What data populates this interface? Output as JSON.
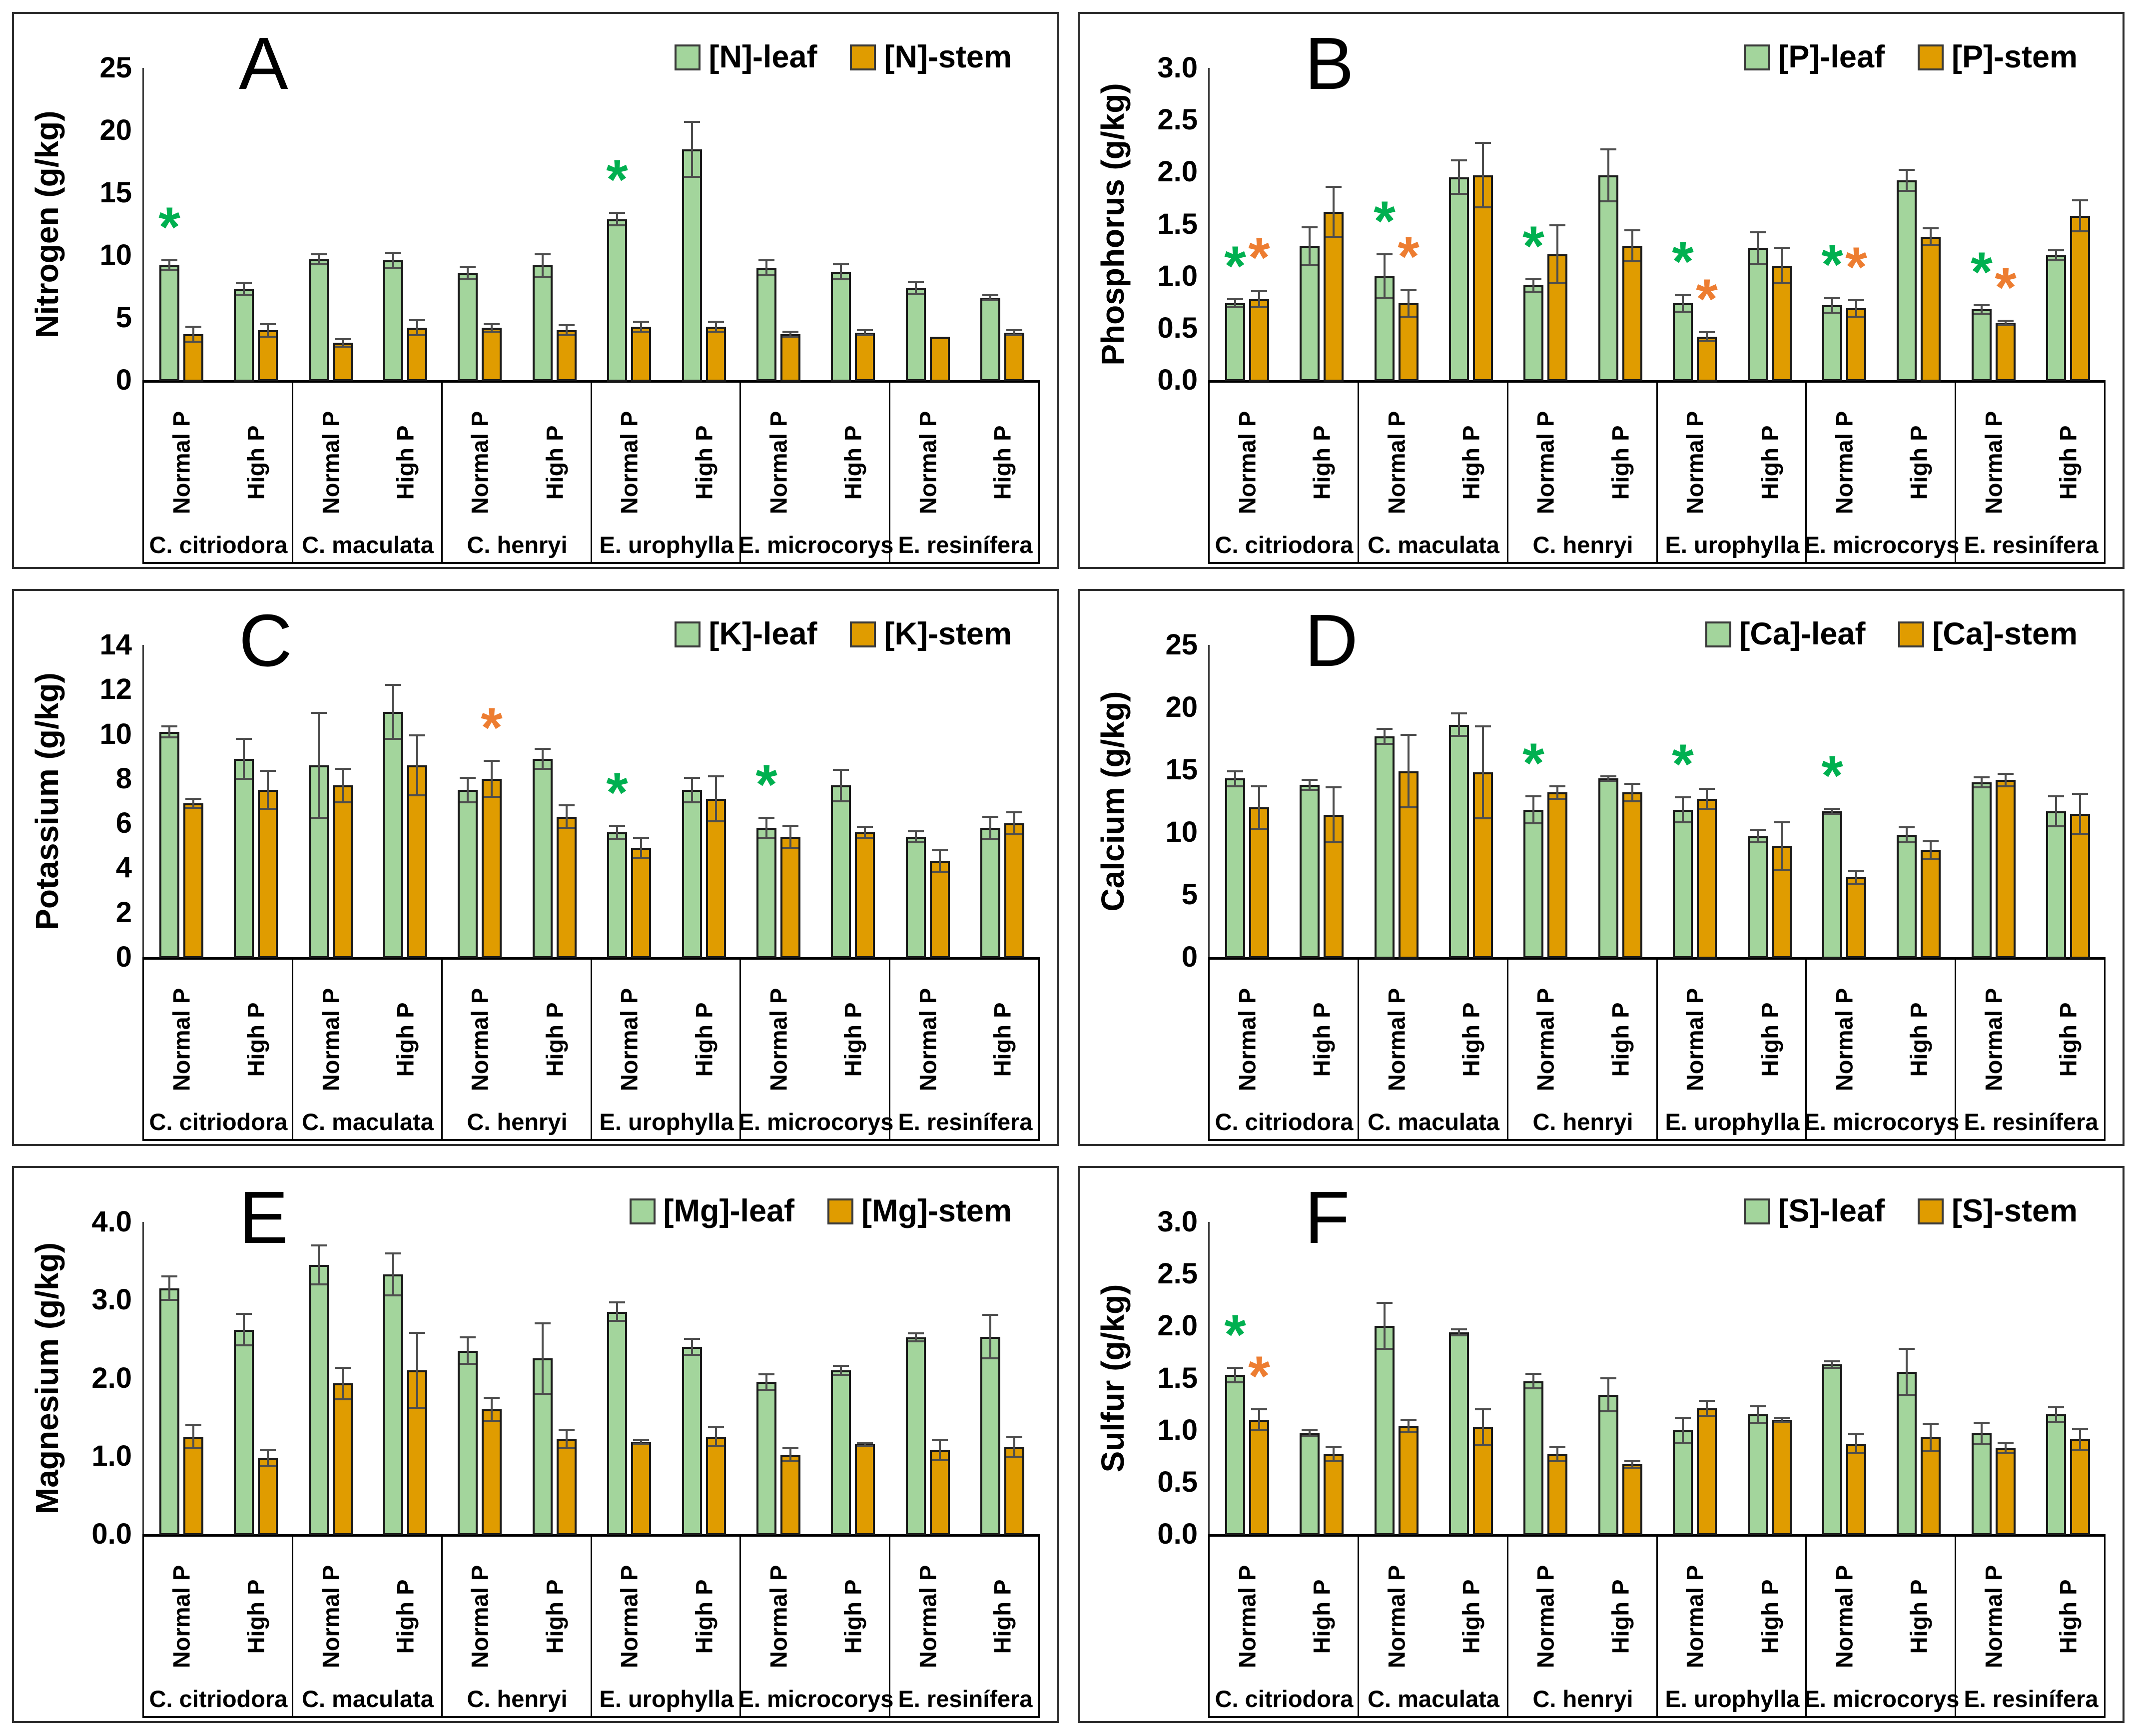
{
  "figure": {
    "background": "#FFFFFF",
    "sig_marker": "*",
    "species": [
      "C. citriodora",
      "C. maculata",
      "C. henryi",
      "E. urophylla",
      "E. microcorys",
      "E. resinífera"
    ],
    "treatments": [
      "Normal P",
      "High P"
    ],
    "colors": {
      "leaf_fill": "#A3D59C",
      "stem_fill": "#E09C00",
      "bar_border": "#1A1A1A",
      "error_bar": "#4D4D4D",
      "sig_leaf": "#00B050",
      "sig_stem": "#ED7D31",
      "panel_border": "#2E2E2E",
      "axis": "#3F3F3F"
    }
  },
  "chart_data": [
    {
      "panel_letter": "A",
      "type": "bar",
      "ylabel": "Nitrogen (g/kg)",
      "ylim": [
        0,
        25
      ],
      "yticks": [
        0,
        5,
        10,
        15,
        20,
        25
      ],
      "ytick_labels": [
        "0",
        "5",
        "10",
        "15",
        "20",
        "25"
      ],
      "categories": [
        "C. citriodora Normal P",
        "C. citriodora High P",
        "C. maculata Normal P",
        "C. maculata High P",
        "C. henryi Normal P",
        "C. henryi High P",
        "E. urophylla Normal P",
        "E. urophylla High P",
        "E. microcorys Normal P",
        "E. microcorys High P",
        "E. resinífera Normal P",
        "E. resinífera High P"
      ],
      "series": [
        {
          "name": "[N]-leaf",
          "tissue": "leaf",
          "values": [
            9.2,
            7.3,
            9.7,
            9.6,
            8.6,
            9.2,
            12.9,
            18.5,
            9.0,
            8.7,
            7.4,
            6.6
          ],
          "errors": [
            0.4,
            0.5,
            0.4,
            0.6,
            0.5,
            0.9,
            0.5,
            2.2,
            0.6,
            0.6,
            0.5,
            0.2
          ],
          "sig": [
            0,
            6
          ]
        },
        {
          "name": "[N]-stem",
          "tissue": "stem",
          "values": [
            3.7,
            4.0,
            3.0,
            4.2,
            4.2,
            4.0,
            4.3,
            4.3,
            3.7,
            3.8,
            3.5,
            3.8
          ],
          "errors": [
            0.6,
            0.5,
            0.3,
            0.6,
            0.3,
            0.4,
            0.4,
            0.4,
            0.2,
            0.2,
            0,
            0.2
          ],
          "sig": []
        }
      ]
    },
    {
      "panel_letter": "B",
      "type": "bar",
      "ylabel": "Phosphorus (g/kg)",
      "ylim": [
        0,
        3.0
      ],
      "yticks": [
        0,
        0.5,
        1.0,
        1.5,
        2.0,
        2.5,
        3.0
      ],
      "ytick_labels": [
        "0.0",
        "0.5",
        "1.0",
        "1.5",
        "2.0",
        "2.5",
        "3.0"
      ],
      "categories": [
        "C. citriodora Normal P",
        "C. citriodora High P",
        "C. maculata Normal P",
        "C. maculata High P",
        "C. henryi Normal P",
        "C. henryi High P",
        "E. urophylla Normal P",
        "E. urophylla High P",
        "E. microcorys Normal P",
        "E. microcorys High P",
        "E. resinífera Normal P",
        "E. resinífera High P"
      ],
      "series": [
        {
          "name": "[P]-leaf",
          "tissue": "leaf",
          "values": [
            0.74,
            1.29,
            1.0,
            1.95,
            0.91,
            1.97,
            0.74,
            1.27,
            0.72,
            1.92,
            0.68,
            1.2
          ],
          "errors": [
            0.04,
            0.18,
            0.21,
            0.16,
            0.06,
            0.25,
            0.08,
            0.15,
            0.07,
            0.1,
            0.04,
            0.05
          ],
          "sig": [
            0,
            2,
            4,
            6,
            8,
            10
          ]
        },
        {
          "name": "[P]-stem",
          "tissue": "stem",
          "values": [
            0.78,
            1.62,
            0.74,
            1.97,
            1.21,
            1.29,
            0.42,
            1.1,
            0.69,
            1.38,
            0.55,
            1.58
          ],
          "errors": [
            0.08,
            0.24,
            0.13,
            0.31,
            0.28,
            0.15,
            0.04,
            0.17,
            0.08,
            0.08,
            0.02,
            0.15
          ],
          "sig": [
            0,
            2,
            6,
            8,
            10
          ]
        }
      ]
    },
    {
      "panel_letter": "C",
      "type": "bar",
      "ylabel": "Potassium (g/kg)",
      "ylim": [
        0,
        14
      ],
      "yticks": [
        0,
        2,
        4,
        6,
        8,
        10,
        12,
        14
      ],
      "ytick_labels": [
        "0",
        "2",
        "4",
        "6",
        "8",
        "10",
        "12",
        "14"
      ],
      "categories": [
        "C. citriodora Normal P",
        "C. citriodora High P",
        "C. maculata Normal P",
        "C. maculata High P",
        "C. henryi Normal P",
        "C. henryi High P",
        "E. urophylla Normal P",
        "E. urophylla High P",
        "E. microcorys Normal P",
        "E. microcorys High P",
        "E. resinífera Normal P",
        "E. resinífera High P"
      ],
      "series": [
        {
          "name": "[K]-leaf",
          "tissue": "leaf",
          "values": [
            10.1,
            8.9,
            8.6,
            11.0,
            7.5,
            8.9,
            5.6,
            7.5,
            5.8,
            7.7,
            5.4,
            5.8
          ],
          "errors": [
            0.25,
            0.9,
            2.35,
            1.2,
            0.55,
            0.45,
            0.3,
            0.55,
            0.45,
            0.7,
            0.25,
            0.5
          ],
          "sig": [
            6,
            8
          ]
        },
        {
          "name": "[K]-stem",
          "tissue": "stem",
          "values": [
            6.9,
            7.5,
            7.7,
            8.6,
            8.0,
            6.3,
            4.9,
            7.1,
            5.4,
            5.6,
            4.3,
            6.0
          ],
          "errors": [
            0.2,
            0.85,
            0.75,
            1.35,
            0.8,
            0.5,
            0.45,
            1.0,
            0.5,
            0.25,
            0.5,
            0.5
          ],
          "sig": [
            4
          ]
        }
      ]
    },
    {
      "panel_letter": "D",
      "type": "bar",
      "ylabel": "Calcium (g/kg)",
      "ylim": [
        0,
        25
      ],
      "yticks": [
        0,
        5,
        10,
        15,
        20,
        25
      ],
      "ytick_labels": [
        "0",
        "5",
        "10",
        "15",
        "20",
        "25"
      ],
      "categories": [
        "C. citriodora Normal P",
        "C. citriodora High P",
        "C. maculata Normal P",
        "C. maculata High P",
        "C. henryi Normal P",
        "C. henryi High P",
        "E. urophylla Normal P",
        "E. urophylla High P",
        "E. microcorys Normal P",
        "E. microcorys High P",
        "E. resinífera Normal P",
        "E. resinífera High P"
      ],
      "series": [
        {
          "name": "[Ca]-leaf",
          "tissue": "leaf",
          "values": [
            14.3,
            13.8,
            17.7,
            18.6,
            11.8,
            14.3,
            11.8,
            9.7,
            11.7,
            9.8,
            14.0,
            11.7
          ],
          "errors": [
            0.6,
            0.4,
            0.6,
            0.9,
            1.1,
            0.2,
            1.0,
            0.5,
            0.2,
            0.6,
            0.4,
            1.2
          ],
          "sig": [
            4,
            6,
            8
          ]
        },
        {
          "name": "[Ca]-stem",
          "tissue": "stem",
          "values": [
            12.0,
            11.4,
            14.9,
            14.8,
            13.2,
            13.2,
            12.7,
            8.9,
            6.4,
            8.6,
            14.2,
            11.5
          ],
          "errors": [
            1.7,
            2.2,
            2.9,
            3.7,
            0.5,
            0.7,
            0.8,
            1.9,
            0.5,
            0.7,
            0.5,
            1.6
          ],
          "sig": []
        }
      ]
    },
    {
      "panel_letter": "E",
      "type": "bar",
      "ylabel": "Magnesium (g/kg)",
      "ylim": [
        0,
        4.0
      ],
      "yticks": [
        0,
        1.0,
        2.0,
        3.0,
        4.0
      ],
      "ytick_labels": [
        "0.0",
        "1.0",
        "2.0",
        "3.0",
        "4.0"
      ],
      "categories": [
        "C. citriodora Normal P",
        "C. citriodora High P",
        "C. maculata Normal P",
        "C. maculata High P",
        "C. henryi Normal P",
        "C. henryi High P",
        "E. urophylla Normal P",
        "E. urophylla High P",
        "E. microcorys Normal P",
        "E. microcorys High P",
        "E. resinífera Normal P",
        "E. resinífera High P"
      ],
      "series": [
        {
          "name": "[Mg]-leaf",
          "tissue": "leaf",
          "values": [
            3.15,
            2.62,
            3.45,
            3.33,
            2.35,
            2.25,
            2.85,
            2.4,
            1.95,
            2.1,
            2.52,
            2.53
          ],
          "errors": [
            0.15,
            0.2,
            0.25,
            0.27,
            0.17,
            0.45,
            0.12,
            0.1,
            0.1,
            0.06,
            0.05,
            0.28
          ],
          "sig": []
        },
        {
          "name": "[Mg]-stem",
          "tissue": "stem",
          "values": [
            1.25,
            0.98,
            1.93,
            2.1,
            1.6,
            1.22,
            1.18,
            1.25,
            1.02,
            1.15,
            1.08,
            1.12
          ],
          "errors": [
            0.15,
            0.1,
            0.2,
            0.48,
            0.15,
            0.12,
            0.03,
            0.12,
            0.08,
            0.02,
            0.13,
            0.13
          ],
          "sig": []
        }
      ]
    },
    {
      "panel_letter": "F",
      "type": "bar",
      "ylabel": "Sulfur (g/kg)",
      "ylim": [
        0,
        3.0
      ],
      "yticks": [
        0,
        0.5,
        1.0,
        1.5,
        2.0,
        2.5,
        3.0
      ],
      "ytick_labels": [
        "0.0",
        "0.5",
        "1.0",
        "1.5",
        "2.0",
        "2.5",
        "3.0"
      ],
      "categories": [
        "C. citriodora Normal P",
        "C. citriodora High P",
        "C. maculata Normal P",
        "C. maculata High P",
        "C. henryi Normal P",
        "C. henryi High P",
        "E. urophylla Normal P",
        "E. urophylla High P",
        "E. microcorys Normal P",
        "E. microcorys High P",
        "E. resinífera Normal P",
        "E. resinífera High P"
      ],
      "series": [
        {
          "name": "[S]-leaf",
          "tissue": "leaf",
          "values": [
            1.53,
            0.97,
            2.0,
            1.94,
            1.47,
            1.34,
            1.0,
            1.15,
            1.63,
            1.56,
            0.97,
            1.15
          ],
          "errors": [
            0.07,
            0.03,
            0.22,
            0.03,
            0.07,
            0.16,
            0.12,
            0.08,
            0.03,
            0.22,
            0.1,
            0.07
          ],
          "sig": [
            0
          ]
        },
        {
          "name": "[S]-stem",
          "tissue": "stem",
          "values": [
            1.1,
            0.77,
            1.04,
            1.03,
            0.77,
            0.67,
            1.21,
            1.1,
            0.87,
            0.93,
            0.83,
            0.91
          ],
          "errors": [
            0.1,
            0.07,
            0.06,
            0.17,
            0.07,
            0.03,
            0.07,
            0.02,
            0.09,
            0.13,
            0.05,
            0.1
          ],
          "sig": [
            0
          ]
        }
      ]
    }
  ]
}
